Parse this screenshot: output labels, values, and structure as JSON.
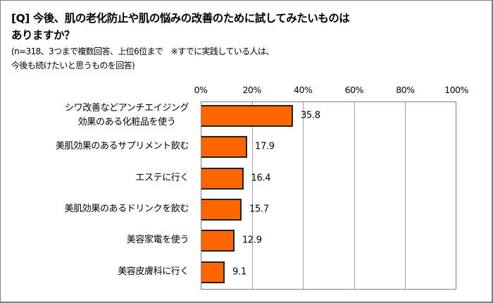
{
  "title": "[Q] 今後、肌の老化防止や肌の悩みの改善のために試してみたいものは\nありますか？",
  "title_lines": [
    "[Q] 今後、肌の老化防止や肌の悩みの改善のために試してみたいものは",
    "ありますか？"
  ],
  "subtitle_lines": [
    "(n=318、3つまで複数回答、上位6位まで　※すでに実践している人は、",
    "今後も続けたいと思うものを回答)"
  ],
  "colors": {
    "bar": "#FF6600",
    "bar_border": "#222222",
    "grid": "#A0A0A0",
    "frame": "#808080"
  },
  "chart_data": {
    "type": "bar",
    "orientation": "horizontal",
    "title": "[Q] 今後、肌の老化防止や肌の悩みの改善のために試してみたいものはありますか？",
    "subtitle": "(n=318、3つまで複数回答、上位6位まで ※すでに実践している人は、今後も続けたいと思うものを回答)",
    "categories": [
      "シワ改善などアンチエイジング効果のある化粧品を使う",
      "美肌効果のあるサプリメント飲む",
      "エステに行く",
      "美肌効果のあるドリンクを飲む",
      "美容家電を使う",
      "美容皮膚科に行く"
    ],
    "category_lines": [
      [
        "シワ改善などアンチエイジング",
        "効果のある化粧品を使う"
      ],
      [
        "美肌効果のあるサプリメント飲む"
      ],
      [
        "エステに行く"
      ],
      [
        "美肌効果のあるドリンクを飲む"
      ],
      [
        "美容家電を使う"
      ],
      [
        "美容皮膚科に行く"
      ]
    ],
    "values": [
      35.8,
      17.9,
      16.4,
      15.7,
      12.9,
      9.1
    ],
    "value_labels": [
      "35.8",
      "17.9",
      "16.4",
      "15.7",
      "12.9",
      "9.1"
    ],
    "xlabel": "",
    "ylabel": "",
    "xlim": [
      0,
      100
    ],
    "x_ticks": [
      "0%",
      "20%",
      "40%",
      "60%",
      "80%",
      "100%"
    ],
    "grid": true,
    "legend": null
  }
}
